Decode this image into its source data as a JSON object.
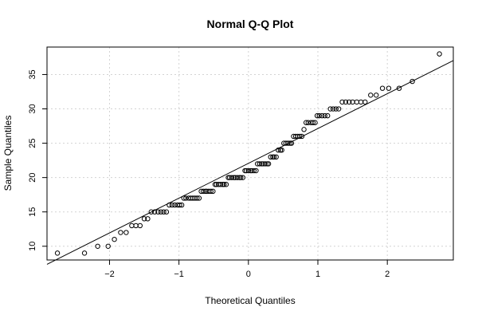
{
  "chart_data": {
    "type": "scatter",
    "title": "Normal Q-Q Plot",
    "xlabel": "Theoretical Quantiles",
    "ylabel": "Sample Quantiles",
    "xlim": [
      -2.9,
      2.95
    ],
    "ylim": [
      8,
      39
    ],
    "xticks": [
      -2,
      -1,
      0,
      1,
      2
    ],
    "yticks": [
      10,
      15,
      20,
      25,
      30,
      35
    ],
    "grid": true,
    "points": [
      {
        "x": -2.75,
        "y": 9
      },
      {
        "x": -2.36,
        "y": 9
      },
      {
        "x": -2.17,
        "y": 10
      },
      {
        "x": -2.02,
        "y": 10
      },
      {
        "x": -1.93,
        "y": 11
      },
      {
        "x": -1.84,
        "y": 12
      },
      {
        "x": -1.76,
        "y": 12
      },
      {
        "x": -1.68,
        "y": 13
      },
      {
        "x": -1.62,
        "y": 13
      },
      {
        "x": -1.56,
        "y": 13
      },
      {
        "x": -1.5,
        "y": 14
      },
      {
        "x": -1.45,
        "y": 14
      },
      {
        "x": -1.4,
        "y": 15
      },
      {
        "x": -1.35,
        "y": 15
      },
      {
        "x": -1.3,
        "y": 15
      },
      {
        "x": -1.26,
        "y": 15
      },
      {
        "x": -1.22,
        "y": 15
      },
      {
        "x": -1.18,
        "y": 15
      },
      {
        "x": -1.14,
        "y": 16
      },
      {
        "x": -1.1,
        "y": 16
      },
      {
        "x": -1.06,
        "y": 16
      },
      {
        "x": -1.02,
        "y": 16
      },
      {
        "x": -0.99,
        "y": 16
      },
      {
        "x": -0.96,
        "y": 16
      },
      {
        "x": -0.93,
        "y": 17
      },
      {
        "x": -0.9,
        "y": 17
      },
      {
        "x": -0.86,
        "y": 17
      },
      {
        "x": -0.83,
        "y": 17
      },
      {
        "x": -0.8,
        "y": 17
      },
      {
        "x": -0.77,
        "y": 17
      },
      {
        "x": -0.74,
        "y": 17
      },
      {
        "x": -0.71,
        "y": 17
      },
      {
        "x": -0.68,
        "y": 18
      },
      {
        "x": -0.65,
        "y": 18
      },
      {
        "x": -0.62,
        "y": 18
      },
      {
        "x": -0.6,
        "y": 18
      },
      {
        "x": -0.57,
        "y": 18
      },
      {
        "x": -0.54,
        "y": 18
      },
      {
        "x": -0.51,
        "y": 18
      },
      {
        "x": -0.48,
        "y": 19
      },
      {
        "x": -0.46,
        "y": 19
      },
      {
        "x": -0.43,
        "y": 19
      },
      {
        "x": -0.4,
        "y": 19
      },
      {
        "x": -0.37,
        "y": 19
      },
      {
        "x": -0.35,
        "y": 19
      },
      {
        "x": -0.32,
        "y": 19
      },
      {
        "x": -0.29,
        "y": 20
      },
      {
        "x": -0.27,
        "y": 20
      },
      {
        "x": -0.24,
        "y": 20
      },
      {
        "x": -0.21,
        "y": 20
      },
      {
        "x": -0.19,
        "y": 20
      },
      {
        "x": -0.16,
        "y": 20
      },
      {
        "x": -0.13,
        "y": 20
      },
      {
        "x": -0.11,
        "y": 20
      },
      {
        "x": -0.08,
        "y": 20
      },
      {
        "x": -0.05,
        "y": 21
      },
      {
        "x": -0.03,
        "y": 21
      },
      {
        "x": 0.0,
        "y": 21
      },
      {
        "x": 0.03,
        "y": 21
      },
      {
        "x": 0.05,
        "y": 21
      },
      {
        "x": 0.08,
        "y": 21
      },
      {
        "x": 0.11,
        "y": 21
      },
      {
        "x": 0.13,
        "y": 22
      },
      {
        "x": 0.16,
        "y": 22
      },
      {
        "x": 0.19,
        "y": 22
      },
      {
        "x": 0.21,
        "y": 22
      },
      {
        "x": 0.24,
        "y": 22
      },
      {
        "x": 0.27,
        "y": 22
      },
      {
        "x": 0.29,
        "y": 22
      },
      {
        "x": 0.32,
        "y": 23
      },
      {
        "x": 0.35,
        "y": 23
      },
      {
        "x": 0.37,
        "y": 23
      },
      {
        "x": 0.4,
        "y": 23
      },
      {
        "x": 0.43,
        "y": 24
      },
      {
        "x": 0.46,
        "y": 24
      },
      {
        "x": 0.48,
        "y": 24
      },
      {
        "x": 0.51,
        "y": 25
      },
      {
        "x": 0.54,
        "y": 25
      },
      {
        "x": 0.57,
        "y": 25
      },
      {
        "x": 0.6,
        "y": 25
      },
      {
        "x": 0.62,
        "y": 25
      },
      {
        "x": 0.65,
        "y": 26
      },
      {
        "x": 0.68,
        "y": 26
      },
      {
        "x": 0.71,
        "y": 26
      },
      {
        "x": 0.74,
        "y": 26
      },
      {
        "x": 0.77,
        "y": 26
      },
      {
        "x": 0.8,
        "y": 27
      },
      {
        "x": 0.83,
        "y": 28
      },
      {
        "x": 0.86,
        "y": 28
      },
      {
        "x": 0.9,
        "y": 28
      },
      {
        "x": 0.93,
        "y": 28
      },
      {
        "x": 0.96,
        "y": 28
      },
      {
        "x": 0.99,
        "y": 29
      },
      {
        "x": 1.02,
        "y": 29
      },
      {
        "x": 1.06,
        "y": 29
      },
      {
        "x": 1.1,
        "y": 29
      },
      {
        "x": 1.14,
        "y": 29
      },
      {
        "x": 1.18,
        "y": 30
      },
      {
        "x": 1.22,
        "y": 30
      },
      {
        "x": 1.26,
        "y": 30
      },
      {
        "x": 1.3,
        "y": 30
      },
      {
        "x": 1.35,
        "y": 31
      },
      {
        "x": 1.4,
        "y": 31
      },
      {
        "x": 1.45,
        "y": 31
      },
      {
        "x": 1.5,
        "y": 31
      },
      {
        "x": 1.56,
        "y": 31
      },
      {
        "x": 1.62,
        "y": 31
      },
      {
        "x": 1.68,
        "y": 31
      },
      {
        "x": 1.76,
        "y": 32
      },
      {
        "x": 1.84,
        "y": 32
      },
      {
        "x": 1.93,
        "y": 33
      },
      {
        "x": 2.02,
        "y": 33
      },
      {
        "x": 2.17,
        "y": 33
      },
      {
        "x": 2.36,
        "y": 34
      },
      {
        "x": 2.75,
        "y": 38
      }
    ],
    "reference_line": {
      "x": [
        -2.9,
        2.95
      ],
      "y": [
        7.37,
        37.03
      ]
    }
  }
}
